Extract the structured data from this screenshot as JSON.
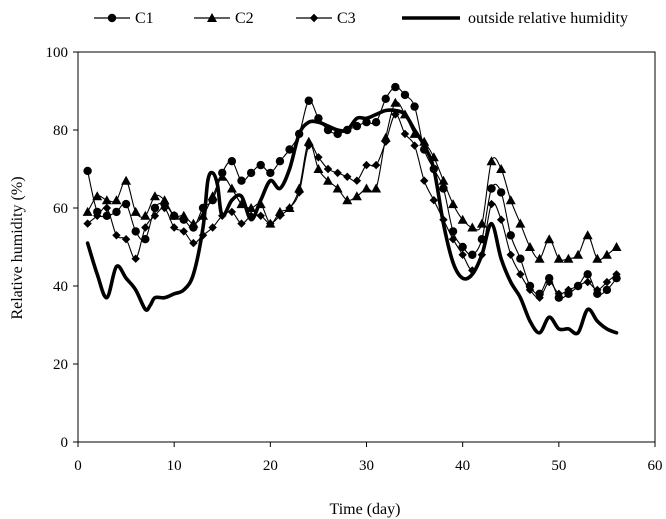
{
  "chart_data": {
    "type": "line",
    "xlabel": "Time (day)",
    "ylabel": "Relative humidity (%)",
    "xlim": [
      0,
      60
    ],
    "ylim": [
      0,
      100
    ],
    "xticks": [
      0,
      10,
      20,
      30,
      40,
      50,
      60
    ],
    "yticks": [
      0,
      20,
      40,
      60,
      80,
      100
    ],
    "grid": false,
    "legend_position": "top",
    "series": [
      {
        "name": "C1",
        "marker": "circle",
        "x": [
          1,
          2,
          3,
          4,
          5,
          6,
          7,
          8,
          9,
          10,
          11,
          12,
          13,
          14,
          15,
          16,
          17,
          18,
          19,
          20,
          21,
          22,
          23,
          24,
          25,
          26,
          27,
          28,
          29,
          30,
          31,
          32,
          33,
          34,
          35,
          36,
          37,
          38,
          39,
          40,
          41,
          42,
          43,
          44,
          45,
          46,
          47,
          48,
          49,
          50,
          51,
          52,
          53,
          54,
          55,
          56
        ],
        "values": [
          69.5,
          59,
          58,
          59,
          61,
          54,
          52,
          60,
          61,
          58,
          57,
          55,
          60,
          62,
          69,
          72,
          67,
          69,
          71,
          69,
          72,
          75,
          79,
          87.5,
          83,
          80,
          79,
          80,
          81,
          82,
          82,
          88,
          91,
          89,
          86,
          75,
          70,
          65,
          54,
          50,
          48,
          52,
          65,
          64,
          53,
          47,
          40,
          38,
          42,
          37,
          38,
          40,
          43,
          38,
          39,
          42
        ]
      },
      {
        "name": "C2",
        "marker": "triangle",
        "x": [
          1,
          2,
          3,
          4,
          5,
          6,
          7,
          8,
          9,
          10,
          11,
          12,
          13,
          14,
          15,
          16,
          17,
          18,
          19,
          20,
          21,
          22,
          23,
          24,
          25,
          26,
          27,
          28,
          29,
          30,
          31,
          32,
          33,
          34,
          35,
          36,
          37,
          38,
          39,
          40,
          41,
          42,
          43,
          44,
          45,
          46,
          47,
          48,
          49,
          50,
          51,
          52,
          53,
          54,
          55,
          56
        ],
        "values": [
          59,
          63,
          62,
          62,
          67,
          59,
          58,
          63,
          62,
          58,
          58,
          56,
          58,
          63,
          68,
          65,
          61,
          60,
          61,
          56,
          59,
          60,
          65,
          77,
          70,
          67,
          65,
          62,
          63,
          65,
          65,
          78,
          87,
          84,
          79,
          77,
          73,
          67,
          61,
          57,
          55,
          56,
          72,
          70,
          62,
          56,
          50,
          47,
          52,
          47,
          47,
          48,
          53,
          47,
          48,
          50
        ]
      },
      {
        "name": "C3",
        "marker": "diamond",
        "x": [
          1,
          2,
          3,
          4,
          5,
          6,
          7,
          8,
          9,
          10,
          11,
          12,
          13,
          14,
          15,
          16,
          17,
          18,
          19,
          20,
          21,
          22,
          23,
          24,
          25,
          26,
          27,
          28,
          29,
          30,
          31,
          32,
          33,
          34,
          35,
          36,
          37,
          38,
          39,
          40,
          41,
          42,
          43,
          44,
          45,
          46,
          47,
          48,
          49,
          50,
          51,
          52,
          53,
          54,
          55,
          56
        ],
        "values": [
          56,
          58,
          60,
          53,
          52,
          47,
          55,
          58,
          60,
          55,
          54,
          51,
          53,
          55,
          58,
          59,
          56,
          58,
          58,
          56,
          58,
          60,
          64,
          76,
          73,
          70,
          69,
          68,
          67,
          71,
          71,
          77,
          84,
          79,
          76,
          67,
          62,
          57,
          52,
          48,
          44,
          48,
          61,
          57,
          48,
          43,
          39,
          37,
          41,
          38,
          39,
          40,
          41,
          39,
          41,
          43
        ]
      },
      {
        "name": "outside relative humidity",
        "marker": "none",
        "x": [
          1,
          2,
          3,
          4,
          5,
          6,
          7,
          7.5,
          8,
          9,
          10,
          11,
          12,
          13,
          13.5,
          14,
          14.5,
          15,
          16,
          17,
          18,
          19,
          20,
          21,
          22,
          23,
          24,
          25,
          26,
          27,
          28,
          29,
          30,
          31,
          32,
          33,
          34,
          35,
          36,
          37,
          38,
          39,
          40,
          41,
          42,
          43,
          44,
          45,
          46,
          47,
          48,
          49,
          50,
          51,
          52,
          53,
          54,
          55,
          56
        ],
        "values": [
          51,
          43,
          37,
          45,
          42,
          39,
          34,
          35,
          37,
          37,
          38,
          39,
          43,
          55,
          67,
          69,
          66,
          58,
          62,
          63,
          57,
          62,
          67,
          65,
          70,
          79,
          82,
          82,
          81,
          80,
          80,
          83,
          83,
          84,
          85,
          85,
          84,
          80,
          76,
          70,
          56,
          46,
          42,
          43,
          48,
          56,
          47,
          41,
          37,
          31,
          28,
          32,
          29,
          29,
          28,
          34,
          31,
          29,
          28
        ]
      }
    ]
  }
}
